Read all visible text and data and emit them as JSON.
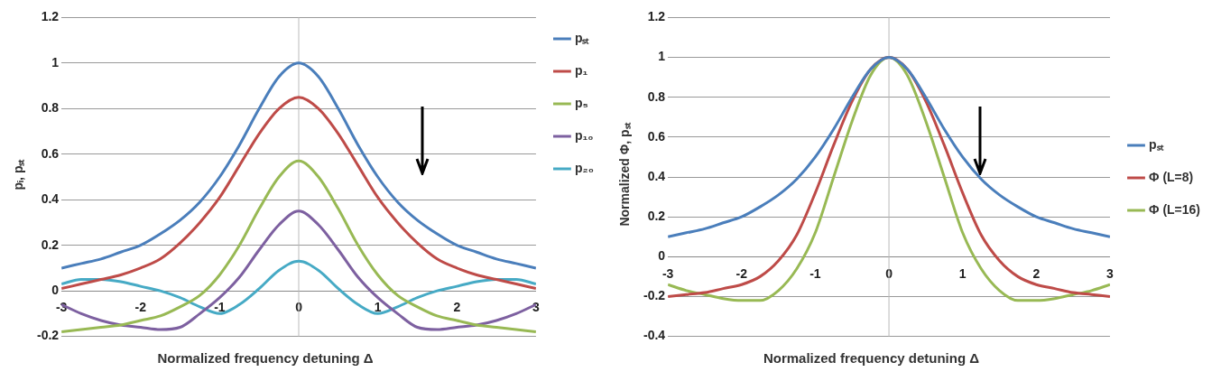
{
  "chart_data": [
    {
      "type": "line",
      "xlabel": "Normalized frequency detuning Δ",
      "ylabel": "pᵢ, pₛₜ",
      "x": [
        -3,
        -2.75,
        -2.5,
        -2.25,
        -2,
        -1.75,
        -1.5,
        -1.25,
        -1,
        -0.75,
        -0.5,
        -0.25,
        0,
        0.25,
        0.5,
        0.75,
        1,
        1.25,
        1.5,
        1.75,
        2,
        2.25,
        2.5,
        2.75,
        3
      ],
      "xlim": [
        -3,
        3
      ],
      "xticks": [
        -3,
        -2,
        -1,
        0,
        1,
        2,
        3
      ],
      "ylim": [
        -0.2,
        1.2
      ],
      "yticks": [
        -0.2,
        0,
        0.2,
        0.4,
        0.6,
        0.8,
        1,
        1.2
      ],
      "grid": "y",
      "legend": "top right",
      "series": [
        {
          "name": "pₛₜ",
          "color": "#4a7ebb",
          "values": [
            0.1,
            0.12,
            0.14,
            0.17,
            0.2,
            0.25,
            0.31,
            0.39,
            0.5,
            0.64,
            0.8,
            0.94,
            1,
            0.94,
            0.8,
            0.64,
            0.5,
            0.39,
            0.31,
            0.25,
            0.2,
            0.17,
            0.14,
            0.12,
            0.1
          ]
        },
        {
          "name": "p₁",
          "color": "#be4b48",
          "values": [
            0.01,
            0.03,
            0.05,
            0.07,
            0.1,
            0.14,
            0.21,
            0.3,
            0.41,
            0.55,
            0.69,
            0.8,
            0.85,
            0.8,
            0.69,
            0.55,
            0.41,
            0.3,
            0.21,
            0.14,
            0.1,
            0.07,
            0.05,
            0.03,
            0.01
          ]
        },
        {
          "name": "p₅",
          "color": "#98b954",
          "values": [
            -0.18,
            -0.17,
            -0.16,
            -0.15,
            -0.13,
            -0.11,
            -0.07,
            -0.02,
            0.07,
            0.2,
            0.36,
            0.5,
            0.57,
            0.5,
            0.36,
            0.2,
            0.07,
            -0.02,
            -0.07,
            -0.11,
            -0.13,
            -0.15,
            -0.16,
            -0.17,
            -0.18
          ]
        },
        {
          "name": "p₁₀",
          "color": "#7d60a0",
          "values": [
            -0.06,
            -0.1,
            -0.13,
            -0.15,
            -0.16,
            -0.17,
            -0.16,
            -0.1,
            -0.03,
            0.06,
            0.18,
            0.29,
            0.35,
            0.29,
            0.18,
            0.06,
            -0.03,
            -0.1,
            -0.16,
            -0.17,
            -0.16,
            -0.15,
            -0.13,
            -0.1,
            -0.06
          ]
        },
        {
          "name": "p₂₀",
          "color": "#46aac5",
          "values": [
            0.03,
            0.05,
            0.05,
            0.04,
            0.02,
            0,
            -0.03,
            -0.07,
            -0.1,
            -0.06,
            0.01,
            0.09,
            0.13,
            0.09,
            0.01,
            -0.06,
            -0.1,
            -0.07,
            -0.03,
            0,
            0.02,
            0.04,
            0.05,
            0.05,
            0.03
          ]
        }
      ]
    },
    {
      "type": "line",
      "xlabel": "Normalized frequency detuning Δ",
      "ylabel": "Normalized  Φ, pₛₜ",
      "x": [
        -3,
        -2.75,
        -2.5,
        -2.25,
        -2,
        -1.75,
        -1.5,
        -1.25,
        -1,
        -0.75,
        -0.5,
        -0.25,
        0,
        0.25,
        0.5,
        0.75,
        1,
        1.25,
        1.5,
        1.75,
        2,
        2.25,
        2.5,
        2.75,
        3
      ],
      "xlim": [
        -3,
        3
      ],
      "xticks": [
        -3,
        -2,
        -1,
        0,
        1,
        2,
        3
      ],
      "ylim": [
        -0.4,
        1.2
      ],
      "yticks": [
        -0.4,
        -0.2,
        0,
        0.2,
        0.4,
        0.6,
        0.8,
        1,
        1.2
      ],
      "grid": "y",
      "legend": "right",
      "series": [
        {
          "name": "pₛₜ",
          "color": "#4a7ebb",
          "values": [
            0.1,
            0.12,
            0.14,
            0.17,
            0.2,
            0.25,
            0.31,
            0.39,
            0.5,
            0.64,
            0.8,
            0.94,
            1,
            0.94,
            0.8,
            0.64,
            0.5,
            0.39,
            0.31,
            0.25,
            0.2,
            0.17,
            0.14,
            0.12,
            0.1
          ]
        },
        {
          "name": "Φ (L=8)",
          "color": "#be4b48",
          "values": [
            -0.2,
            -0.19,
            -0.18,
            -0.16,
            -0.14,
            -0.1,
            -0.02,
            0.11,
            0.32,
            0.56,
            0.78,
            0.94,
            1,
            0.94,
            0.78,
            0.56,
            0.32,
            0.11,
            -0.02,
            -0.1,
            -0.14,
            -0.16,
            -0.18,
            -0.19,
            -0.2
          ]
        },
        {
          "name": "Φ (L=16)",
          "color": "#98b954",
          "values": [
            -0.14,
            -0.17,
            -0.19,
            -0.21,
            -0.22,
            -0.22,
            -0.17,
            -0.06,
            0.12,
            0.4,
            0.68,
            0.91,
            1,
            0.91,
            0.68,
            0.4,
            0.12,
            -0.06,
            -0.17,
            -0.22,
            -0.22,
            -0.21,
            -0.19,
            -0.17,
            -0.14
          ]
        }
      ]
    }
  ]
}
